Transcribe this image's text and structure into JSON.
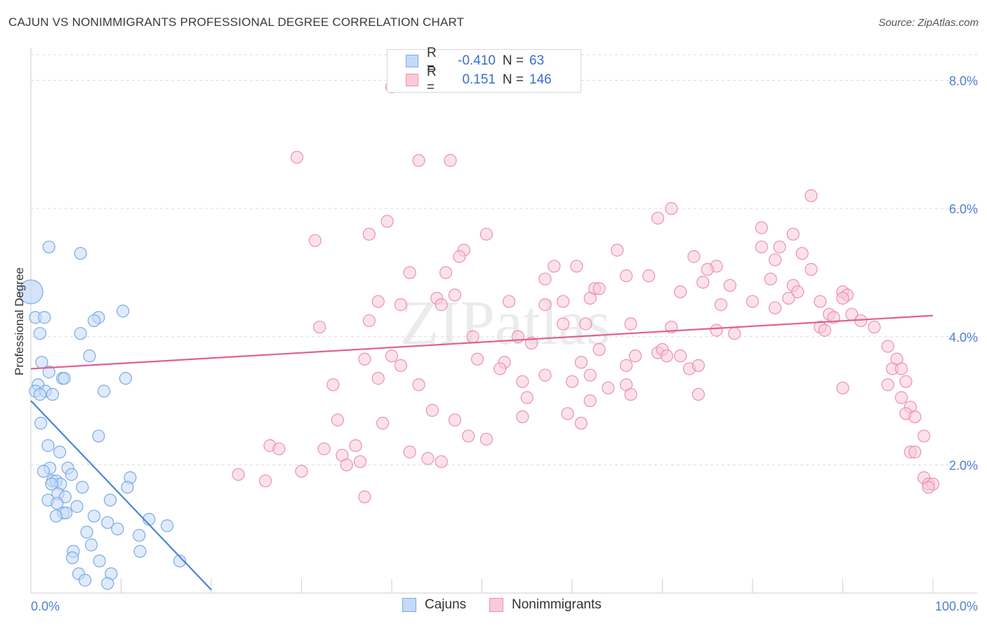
{
  "title": "CAJUN VS NONIMMIGRANTS PROFESSIONAL DEGREE CORRELATION CHART",
  "source": "Source: ZipAtlas.com",
  "watermark": "ZIPatlas",
  "legend": {
    "rows": [
      {
        "r_label": "R =",
        "r_value": "-0.410",
        "n_label": "N =",
        "n_value": "63",
        "color": "#7aaae8",
        "fill": "#c5daf7"
      },
      {
        "r_label": "R =",
        "r_value": "0.151",
        "n_label": "N =",
        "n_value": "146",
        "color": "#ee90ad",
        "fill": "#f8cbd9"
      }
    ]
  },
  "bottom_legend": [
    {
      "label": "Cajuns",
      "color": "#7aaae8",
      "fill": "#c5daf7"
    },
    {
      "label": "Nonimmigrants",
      "color": "#ee90ad",
      "fill": "#f8cbd9"
    }
  ],
  "chart_data": {
    "type": "scatter",
    "ylabel": "Professional Degree",
    "xlabel": "",
    "xlim": [
      0,
      100
    ],
    "ylim": [
      0,
      8.4
    ],
    "x_tick_labels": [
      "0.0%",
      "100.0%"
    ],
    "y_ticks": [
      2,
      4,
      6,
      8
    ],
    "y_tick_labels": [
      "2.0%",
      "4.0%",
      "6.0%",
      "8.0%"
    ],
    "series": [
      {
        "name": "Cajuns",
        "color": "#4a86d8",
        "stroke": "#7aaae8",
        "fill": "#c5daf7",
        "trend": {
          "x": [
            0,
            20
          ],
          "y": [
            3.0,
            0.05
          ]
        },
        "points": [
          [
            0.0,
            4.7
          ],
          [
            2.0,
            5.4
          ],
          [
            5.5,
            5.3
          ],
          [
            0.5,
            4.3
          ],
          [
            1.5,
            4.3
          ],
          [
            7.5,
            4.3
          ],
          [
            10.2,
            4.4
          ],
          [
            7.0,
            4.25
          ],
          [
            1.0,
            4.05
          ],
          [
            5.5,
            4.05
          ],
          [
            6.5,
            3.7
          ],
          [
            1.2,
            3.6
          ],
          [
            2.0,
            3.45
          ],
          [
            3.5,
            3.35
          ],
          [
            3.7,
            3.35
          ],
          [
            10.5,
            3.35
          ],
          [
            0.8,
            3.25
          ],
          [
            0.5,
            3.15
          ],
          [
            1.6,
            3.15
          ],
          [
            2.4,
            3.1
          ],
          [
            8.1,
            3.15
          ],
          [
            1.0,
            3.1
          ],
          [
            1.1,
            2.65
          ],
          [
            7.5,
            2.45
          ],
          [
            1.9,
            2.3
          ],
          [
            3.2,
            2.2
          ],
          [
            2.1,
            1.95
          ],
          [
            4.1,
            1.95
          ],
          [
            1.4,
            1.9
          ],
          [
            4.5,
            1.85
          ],
          [
            11.0,
            1.8
          ],
          [
            2.4,
            1.75
          ],
          [
            2.8,
            1.75
          ],
          [
            3.3,
            1.7
          ],
          [
            2.3,
            1.7
          ],
          [
            10.7,
            1.65
          ],
          [
            5.7,
            1.65
          ],
          [
            3.0,
            1.55
          ],
          [
            3.8,
            1.5
          ],
          [
            1.9,
            1.45
          ],
          [
            2.9,
            1.4
          ],
          [
            8.8,
            1.45
          ],
          [
            5.1,
            1.35
          ],
          [
            3.6,
            1.25
          ],
          [
            3.9,
            1.25
          ],
          [
            7.0,
            1.2
          ],
          [
            2.8,
            1.2
          ],
          [
            13.1,
            1.15
          ],
          [
            8.5,
            1.1
          ],
          [
            15.1,
            1.05
          ],
          [
            9.6,
            1.0
          ],
          [
            6.2,
            0.95
          ],
          [
            12.0,
            0.9
          ],
          [
            6.7,
            0.75
          ],
          [
            12.1,
            0.65
          ],
          [
            4.7,
            0.65
          ],
          [
            4.6,
            0.55
          ],
          [
            7.6,
            0.5
          ],
          [
            16.5,
            0.5
          ],
          [
            5.3,
            0.3
          ],
          [
            8.9,
            0.3
          ],
          [
            6.0,
            0.2
          ],
          [
            8.5,
            0.15
          ]
        ]
      },
      {
        "name": "Nonimmigrants",
        "color": "#e06090",
        "stroke": "#ee90ad",
        "fill": "#f8cbd9",
        "trend": {
          "x": [
            0,
            100
          ],
          "y": [
            3.5,
            4.33
          ]
        },
        "points": [
          [
            40.0,
            7.9
          ],
          [
            29.5,
            6.8
          ],
          [
            43.0,
            6.75
          ],
          [
            46.5,
            6.75
          ],
          [
            86.5,
            6.2
          ],
          [
            71.0,
            6.0
          ],
          [
            69.5,
            5.85
          ],
          [
            39.5,
            5.8
          ],
          [
            81.0,
            5.7
          ],
          [
            37.5,
            5.6
          ],
          [
            50.5,
            5.6
          ],
          [
            84.5,
            5.6
          ],
          [
            31.5,
            5.5
          ],
          [
            81.0,
            5.4
          ],
          [
            83.0,
            5.4
          ],
          [
            48.0,
            5.35
          ],
          [
            65.0,
            5.35
          ],
          [
            47.5,
            5.25
          ],
          [
            85.5,
            5.3
          ],
          [
            73.5,
            5.25
          ],
          [
            82.5,
            5.2
          ],
          [
            76.0,
            5.1
          ],
          [
            58.0,
            5.1
          ],
          [
            60.5,
            5.1
          ],
          [
            75.0,
            5.05
          ],
          [
            86.5,
            5.05
          ],
          [
            42.0,
            5.0
          ],
          [
            46.0,
            5.0
          ],
          [
            66.0,
            4.95
          ],
          [
            68.5,
            4.95
          ],
          [
            57.0,
            4.9
          ],
          [
            82.0,
            4.9
          ],
          [
            74.5,
            4.85
          ],
          [
            77.5,
            4.8
          ],
          [
            84.5,
            4.8
          ],
          [
            62.5,
            4.75
          ],
          [
            63.0,
            4.75
          ],
          [
            72.0,
            4.7
          ],
          [
            85.0,
            4.7
          ],
          [
            90.0,
            4.7
          ],
          [
            90.5,
            4.65
          ],
          [
            90.0,
            4.6
          ],
          [
            87.5,
            4.55
          ],
          [
            38.5,
            4.55
          ],
          [
            47.0,
            4.65
          ],
          [
            45.0,
            4.6
          ],
          [
            53.0,
            4.55
          ],
          [
            59.0,
            4.55
          ],
          [
            62.0,
            4.6
          ],
          [
            76.5,
            4.5
          ],
          [
            80.0,
            4.55
          ],
          [
            84.0,
            4.6
          ],
          [
            41.0,
            4.5
          ],
          [
            45.5,
            4.5
          ],
          [
            57.0,
            4.5
          ],
          [
            82.5,
            4.45
          ],
          [
            66.5,
            4.2
          ],
          [
            87.5,
            4.15
          ],
          [
            88.5,
            4.35
          ],
          [
            91.0,
            4.35
          ],
          [
            89.0,
            4.3
          ],
          [
            92.0,
            4.25
          ],
          [
            32.0,
            4.15
          ],
          [
            37.5,
            4.25
          ],
          [
            59.0,
            4.2
          ],
          [
            61.5,
            4.2
          ],
          [
            71.0,
            4.15
          ],
          [
            76.0,
            4.1
          ],
          [
            78.0,
            4.05
          ],
          [
            93.5,
            4.15
          ],
          [
            88.0,
            4.1
          ],
          [
            49.0,
            4.0
          ],
          [
            54.0,
            4.0
          ],
          [
            63.0,
            3.8
          ],
          [
            66.0,
            3.55
          ],
          [
            69.5,
            3.75
          ],
          [
            70.0,
            3.8
          ],
          [
            72.0,
            3.7
          ],
          [
            70.5,
            3.7
          ],
          [
            55.5,
            3.9
          ],
          [
            61.0,
            3.6
          ],
          [
            37.0,
            3.65
          ],
          [
            40.0,
            3.7
          ],
          [
            49.5,
            3.65
          ],
          [
            52.5,
            3.6
          ],
          [
            67.0,
            3.7
          ],
          [
            95.0,
            3.85
          ],
          [
            96.0,
            3.65
          ],
          [
            73.0,
            3.5
          ],
          [
            74.0,
            3.55
          ],
          [
            95.5,
            3.5
          ],
          [
            96.5,
            3.5
          ],
          [
            62.0,
            3.4
          ],
          [
            52.0,
            3.5
          ],
          [
            57.0,
            3.4
          ],
          [
            41.0,
            3.55
          ],
          [
            54.5,
            3.3
          ],
          [
            33.5,
            3.25
          ],
          [
            38.5,
            3.35
          ],
          [
            60.0,
            3.3
          ],
          [
            66.0,
            3.25
          ],
          [
            64.0,
            3.2
          ],
          [
            95.0,
            3.25
          ],
          [
            97.0,
            3.3
          ],
          [
            43.0,
            3.25
          ],
          [
            55.0,
            3.05
          ],
          [
            62.0,
            3.0
          ],
          [
            66.5,
            3.1
          ],
          [
            34.0,
            2.7
          ],
          [
            39.0,
            2.65
          ],
          [
            74.0,
            3.1
          ],
          [
            90.0,
            3.2
          ],
          [
            96.5,
            3.05
          ],
          [
            97.5,
            2.9
          ],
          [
            97.0,
            2.8
          ],
          [
            44.5,
            2.85
          ],
          [
            47.0,
            2.7
          ],
          [
            54.5,
            2.75
          ],
          [
            59.5,
            2.8
          ],
          [
            61.0,
            2.65
          ],
          [
            98.0,
            2.75
          ],
          [
            99.0,
            2.45
          ],
          [
            97.5,
            2.2
          ],
          [
            32.5,
            2.25
          ],
          [
            42.0,
            2.2
          ],
          [
            36.0,
            2.3
          ],
          [
            26.5,
            2.3
          ],
          [
            27.5,
            2.25
          ],
          [
            34.5,
            2.15
          ],
          [
            36.5,
            2.05
          ],
          [
            35.0,
            2.0
          ],
          [
            45.5,
            2.05
          ],
          [
            44.0,
            2.1
          ],
          [
            23.0,
            1.85
          ],
          [
            30.0,
            1.9
          ],
          [
            26.0,
            1.75
          ],
          [
            48.5,
            2.45
          ],
          [
            50.5,
            2.4
          ],
          [
            37.0,
            1.5
          ],
          [
            99.0,
            1.8
          ],
          [
            99.5,
            1.7
          ],
          [
            100.0,
            1.7
          ],
          [
            99.5,
            1.65
          ],
          [
            98.0,
            2.2
          ]
        ]
      }
    ]
  }
}
